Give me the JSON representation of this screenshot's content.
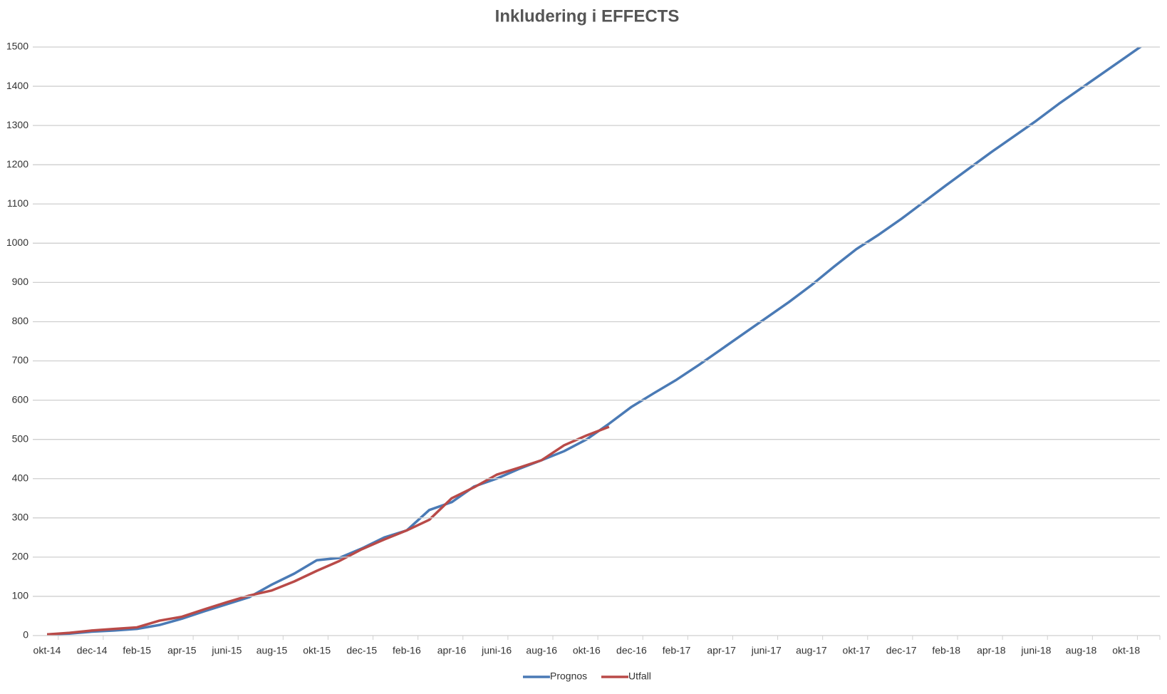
{
  "chart_data": {
    "type": "line",
    "title": "Inkludering i EFFECTS",
    "categories": [
      "okt-14",
      null,
      "dec-14",
      null,
      "feb-15",
      null,
      "apr-15",
      null,
      "juni-15",
      null,
      "aug-15",
      null,
      "okt-15",
      null,
      "dec-15",
      null,
      "feb-16",
      null,
      "apr-16",
      null,
      "juni-16",
      null,
      "aug-16",
      null,
      "okt-16",
      null,
      "dec-16",
      null,
      "feb-17",
      null,
      "apr-17",
      null,
      "juni-17",
      null,
      "aug-17",
      null,
      "okt-17",
      null,
      "dec-17",
      null,
      "feb-18",
      null,
      "apr-18",
      null,
      "juni-18",
      null,
      "aug-18",
      null,
      "okt-18",
      null
    ],
    "series": [
      {
        "name": "Prognos",
        "color": "#4a7ab5",
        "values": [
          3,
          5,
          10,
          13,
          17,
          27,
          43,
          62,
          80,
          98,
          130,
          158,
          192,
          198,
          222,
          250,
          268,
          320,
          340,
          380,
          400,
          425,
          447,
          470,
          500,
          540,
          583,
          618,
          652,
          690,
          730,
          770,
          810,
          850,
          893,
          940,
          985,
          1022,
          1062,
          1105,
          1148,
          1190,
          1232,
          1272,
          1312,
          1355,
          1395,
          1435,
          1475,
          1515
        ]
      },
      {
        "name": "Utfall",
        "color": "#b94a48",
        "values": [
          3,
          7,
          13,
          17,
          21,
          38,
          48,
          67,
          85,
          102,
          115,
          138,
          165,
          190,
          220,
          245,
          268,
          295,
          350,
          378,
          410,
          428,
          447,
          485,
          510,
          532,
          null,
          null,
          null,
          null,
          null,
          null,
          null,
          null,
          null,
          null,
          null,
          null,
          null,
          null,
          null,
          null,
          null,
          null,
          null,
          null,
          null,
          null,
          null,
          null
        ]
      }
    ],
    "ylim": [
      0,
      1500
    ],
    "yticks": [
      0,
      100,
      200,
      300,
      400,
      500,
      600,
      700,
      800,
      900,
      1000,
      1100,
      1200,
      1300,
      1400,
      1500
    ],
    "grid": true,
    "legend": "bottom"
  }
}
